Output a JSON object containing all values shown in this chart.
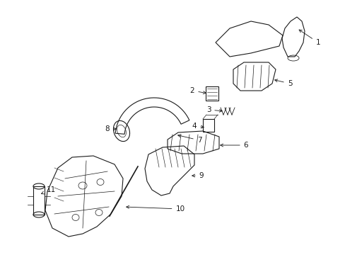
{
  "bg_color": "#ffffff",
  "line_color": "#1a1a1a",
  "fig_width": 4.89,
  "fig_height": 3.6,
  "dpi": 100,
  "label_fontsize": 7.5,
  "arrow_lw": 0.6,
  "part_lw": 0.8
}
